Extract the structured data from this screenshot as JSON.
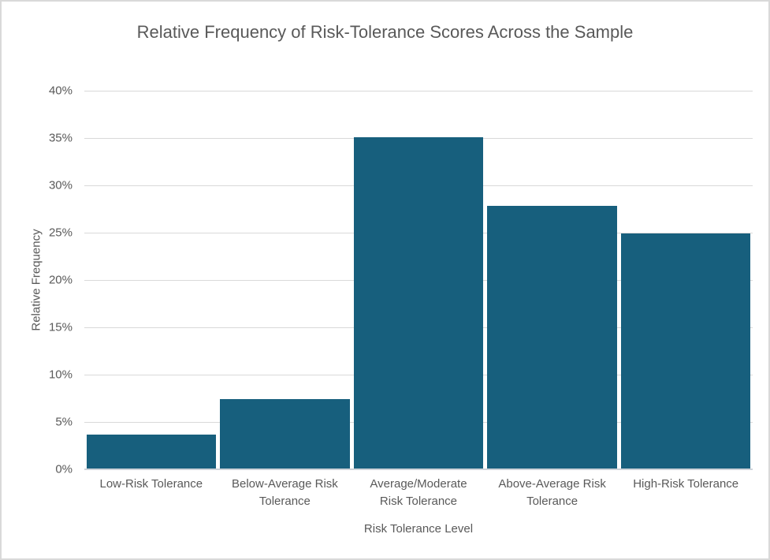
{
  "chart_data": {
    "type": "bar",
    "title": "Relative Frequency of Risk-Tolerance Scores Across the Sample",
    "xlabel": "Risk Tolerance Level",
    "ylabel": "Relative Frequency",
    "categories": [
      "Low-Risk Tolerance",
      "Below-Average Risk\nTolerance",
      "Average/Moderate\nRisk Tolerance",
      "Above-Average Risk\nTolerance",
      "High-Risk Tolerance"
    ],
    "values": [
      3.7,
      7.4,
      35.1,
      27.8,
      24.9
    ],
    "value_unit": "%",
    "ylim": [
      0,
      40
    ],
    "ytick_values": [
      0,
      5,
      10,
      15,
      20,
      25,
      30,
      35,
      40
    ],
    "ytick_labels": [
      "0%",
      "5%",
      "10%",
      "15%",
      "20%",
      "25%",
      "30%",
      "35%",
      "40%"
    ],
    "legend": "none",
    "grid": "horizontal",
    "colors": {
      "bar_fill": "#175F7D",
      "gridline": "#D9D9D9",
      "axis_line": "#CDD3D9",
      "text": "#595959",
      "chart_border": "#D9D9D9",
      "background": "#FFFFFF"
    }
  }
}
